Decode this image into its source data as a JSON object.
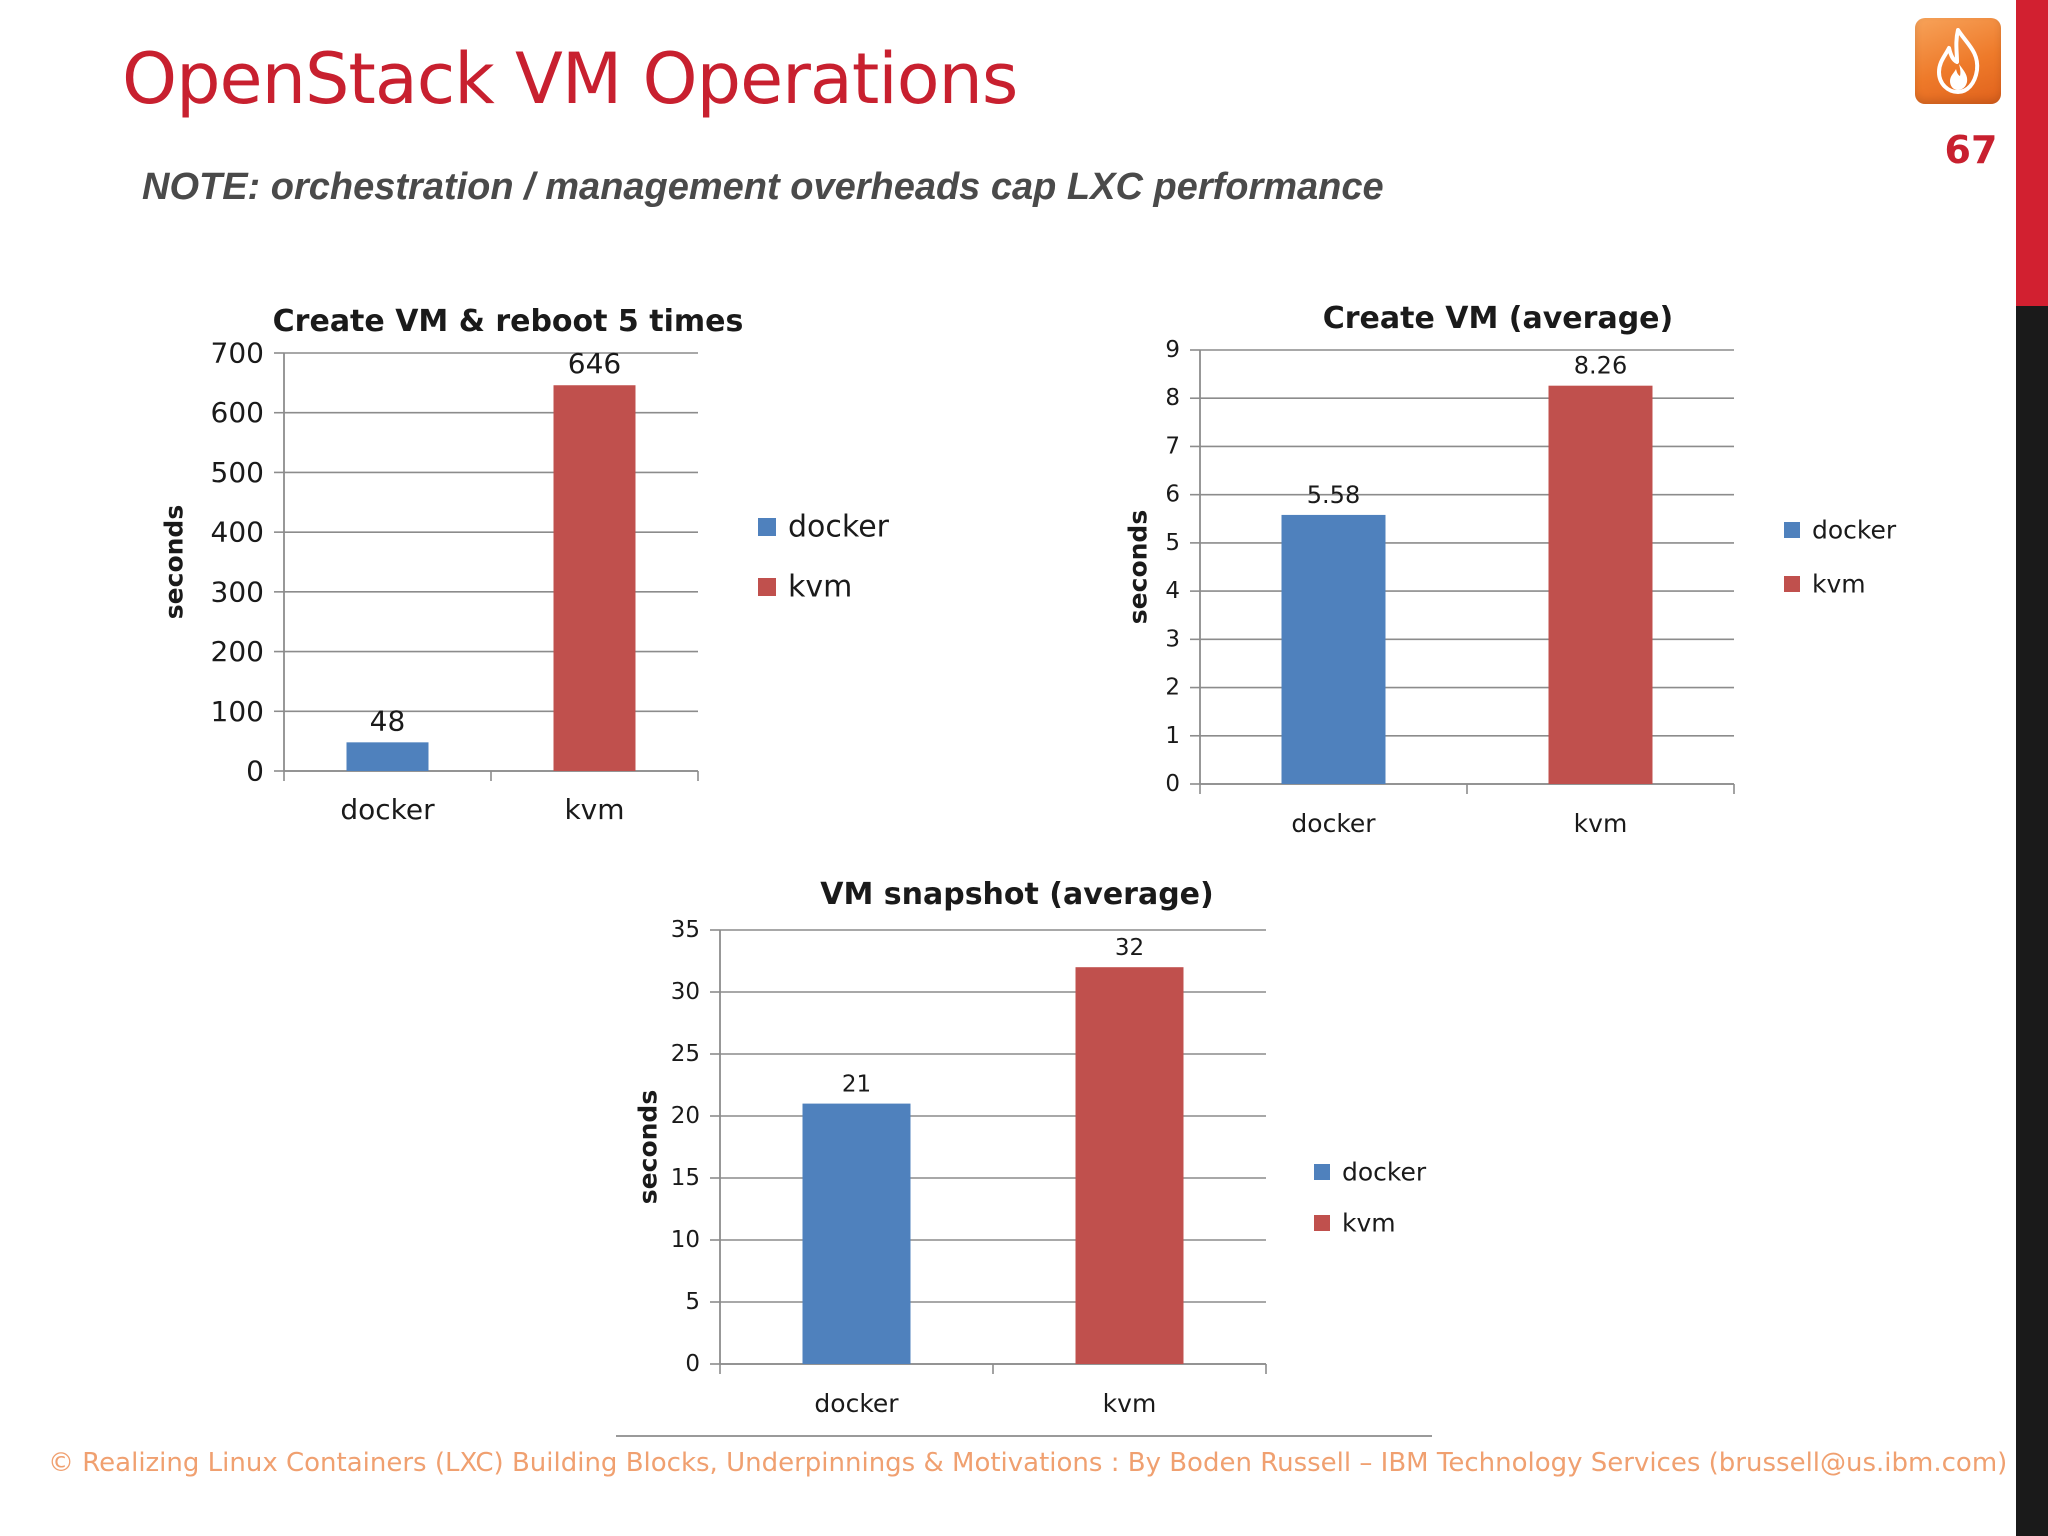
{
  "slide": {
    "title": "OpenStack VM Operations",
    "note": "NOTE: orchestration / management overheads cap LXC performance",
    "page_number": "67",
    "logo_icon": "flame-logo-icon",
    "footer": "© Realizing Linux Containers (LXC) Building Blocks, Underpinnings & Motivations : By Boden Russell – IBM Technology Services (brussell@us.ibm.com)",
    "colors": {
      "title": "#c8202f",
      "accent_red_bar": "#d22030",
      "accent_dark_bar": "#1a1a1a",
      "footer": "#f0a070"
    }
  },
  "chart_data": [
    {
      "type": "bar",
      "title": "Create VM & reboot 5 times",
      "ylabel": "seconds",
      "xlabel": "",
      "categories": [
        "docker",
        "kvm"
      ],
      "values": [
        48,
        646
      ],
      "value_labels": [
        "48",
        "646"
      ],
      "colors": [
        "#4f81bd",
        "#c0504d"
      ],
      "ylim": [
        0,
        700
      ],
      "yticks": [
        0,
        100,
        200,
        300,
        400,
        500,
        600,
        700
      ],
      "grid": true,
      "legend": {
        "placement": "right",
        "entries": [
          "docker",
          "kvm"
        ]
      }
    },
    {
      "type": "bar",
      "title": "Create VM (average)",
      "ylabel": "seconds",
      "xlabel": "",
      "categories": [
        "docker",
        "kvm"
      ],
      "values": [
        5.58,
        8.26
      ],
      "value_labels": [
        "5.58",
        "8.26"
      ],
      "colors": [
        "#4f81bd",
        "#c0504d"
      ],
      "ylim": [
        0,
        9
      ],
      "yticks": [
        0,
        1,
        2,
        3,
        4,
        5,
        6,
        7,
        8,
        9
      ],
      "grid": true,
      "legend": {
        "placement": "right",
        "entries": [
          "docker",
          "kvm"
        ]
      }
    },
    {
      "type": "bar",
      "title": "VM snapshot (average)",
      "ylabel": "seconds",
      "xlabel": "",
      "categories": [
        "docker",
        "kvm"
      ],
      "values": [
        21,
        32
      ],
      "value_labels": [
        "21",
        "32"
      ],
      "colors": [
        "#4f81bd",
        "#c0504d"
      ],
      "ylim": [
        0,
        35
      ],
      "yticks": [
        0,
        5,
        10,
        15,
        20,
        25,
        30,
        35
      ],
      "grid": true,
      "legend": {
        "placement": "right",
        "entries": [
          "docker",
          "kvm"
        ]
      }
    }
  ]
}
